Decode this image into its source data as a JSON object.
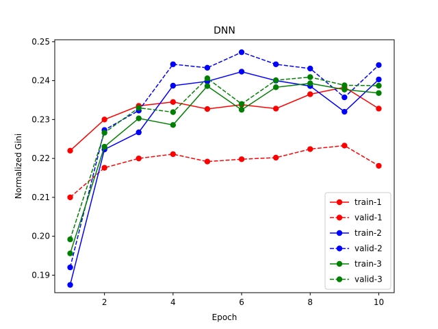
{
  "chart_data": {
    "type": "line",
    "title": "DNN",
    "xlabel": "Epoch",
    "ylabel": "Normalized Gini",
    "xlim": [
      0.55,
      10.45
    ],
    "ylim": [
      0.1855,
      0.2505
    ],
    "x_ticks": [
      2,
      4,
      6,
      8,
      10
    ],
    "y_ticks": [
      0.19,
      0.2,
      0.21,
      0.22,
      0.23,
      0.24,
      0.25
    ],
    "y_tick_labels": [
      "0.19",
      "0.20",
      "0.21",
      "0.22",
      "0.23",
      "0.24",
      "0.25"
    ],
    "x": [
      1,
      2,
      3,
      4,
      5,
      6,
      7,
      8,
      9,
      10
    ],
    "grid": false,
    "legend_position": "lower-right",
    "series": [
      {
        "name": "train-1",
        "color": "#ff0000",
        "dashed": false,
        "values": [
          0.222,
          0.23,
          0.2335,
          0.2345,
          0.2327,
          0.2338,
          0.2328,
          0.2365,
          0.2383,
          0.2328
        ]
      },
      {
        "name": "valid-1",
        "color": "#ff0000",
        "dashed": true,
        "values": [
          0.21,
          0.2176,
          0.22,
          0.2211,
          0.2192,
          0.2198,
          0.2202,
          0.2224,
          0.2233,
          0.2181
        ]
      },
      {
        "name": "train-2",
        "color": "#0000ff",
        "dashed": false,
        "values": [
          0.1875,
          0.2223,
          0.2267,
          0.2387,
          0.2398,
          0.2423,
          0.24,
          0.2386,
          0.232,
          0.2403
        ]
      },
      {
        "name": "valid-2",
        "color": "#0000ff",
        "dashed": true,
        "values": [
          0.192,
          0.2273,
          0.2323,
          0.2442,
          0.2433,
          0.2473,
          0.2442,
          0.2431,
          0.2357,
          0.244
        ]
      },
      {
        "name": "train-3",
        "color": "#008000",
        "dashed": false,
        "values": [
          0.1956,
          0.223,
          0.2303,
          0.2286,
          0.2386,
          0.2325,
          0.2383,
          0.2393,
          0.2377,
          0.2368
        ]
      },
      {
        "name": "valid-3",
        "color": "#008000",
        "dashed": true,
        "values": [
          0.1992,
          0.2266,
          0.233,
          0.2319,
          0.2406,
          0.234,
          0.2401,
          0.2409,
          0.2388,
          0.2387
        ]
      }
    ]
  }
}
